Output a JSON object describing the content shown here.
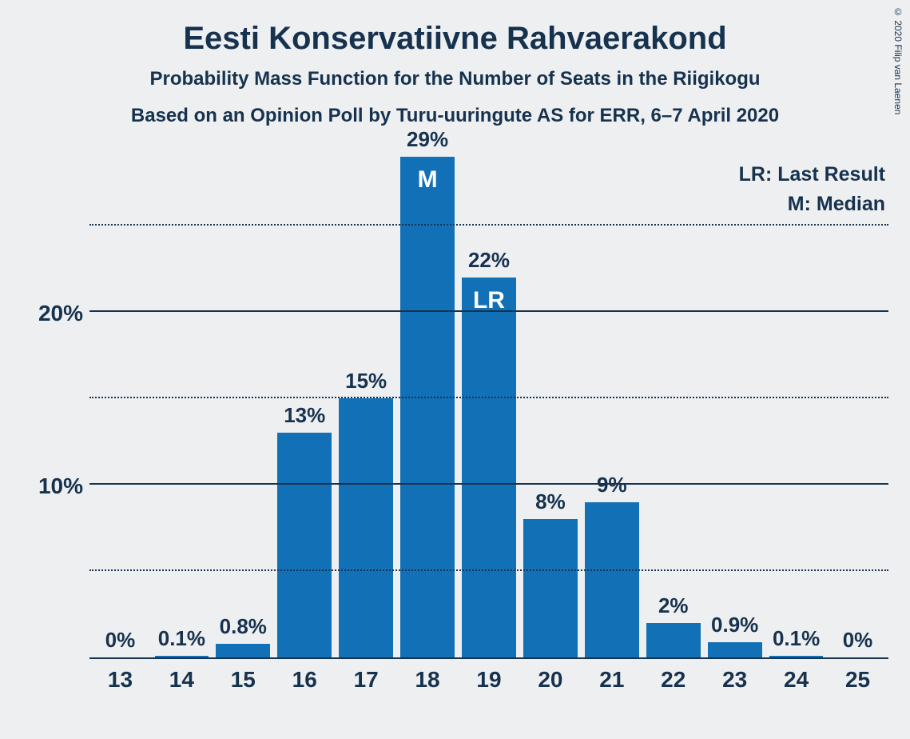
{
  "title": "Eesti Konservatiivne Rahvaerakond",
  "subtitle1": "Probability Mass Function for the Number of Seats in the Riigikogu",
  "subtitle2": "Based on an Opinion Poll by Turu-uuringute AS for ERR, 6–7 April 2020",
  "copyright": "© 2020 Filip van Laenen",
  "legend": {
    "lr": "LR: Last Result",
    "m": "M: Median"
  },
  "chart": {
    "type": "bar",
    "bar_color": "#1270b7",
    "background_color": "#eeeff0",
    "text_color": "#16324e",
    "grid_dotted_color": "#16324e",
    "y_max": 29,
    "y_gridlines_dotted": [
      5,
      15,
      25
    ],
    "y_gridlines_solid": [
      10,
      20
    ],
    "y_tick_labels": [
      {
        "value": 10,
        "label": "10%"
      },
      {
        "value": 20,
        "label": "20%"
      }
    ],
    "categories": [
      "13",
      "14",
      "15",
      "16",
      "17",
      "18",
      "19",
      "20",
      "21",
      "22",
      "23",
      "24",
      "25"
    ],
    "values": [
      0,
      0.1,
      0.8,
      13,
      15,
      29,
      22,
      8,
      9,
      2,
      0.9,
      0.1,
      0
    ],
    "value_labels": [
      "0%",
      "0.1%",
      "0.8%",
      "13%",
      "15%",
      "29%",
      "22%",
      "8%",
      "9%",
      "2%",
      "0.9%",
      "0.1%",
      "0%"
    ],
    "annotations": {
      "18": "M",
      "19": "LR"
    },
    "bar_width_ratio": 0.88,
    "title_fontsize": 40,
    "subtitle_fontsize": 24,
    "tick_fontsize": 28,
    "barlabel_fontsize": 26,
    "annot_fontsize": 30
  }
}
